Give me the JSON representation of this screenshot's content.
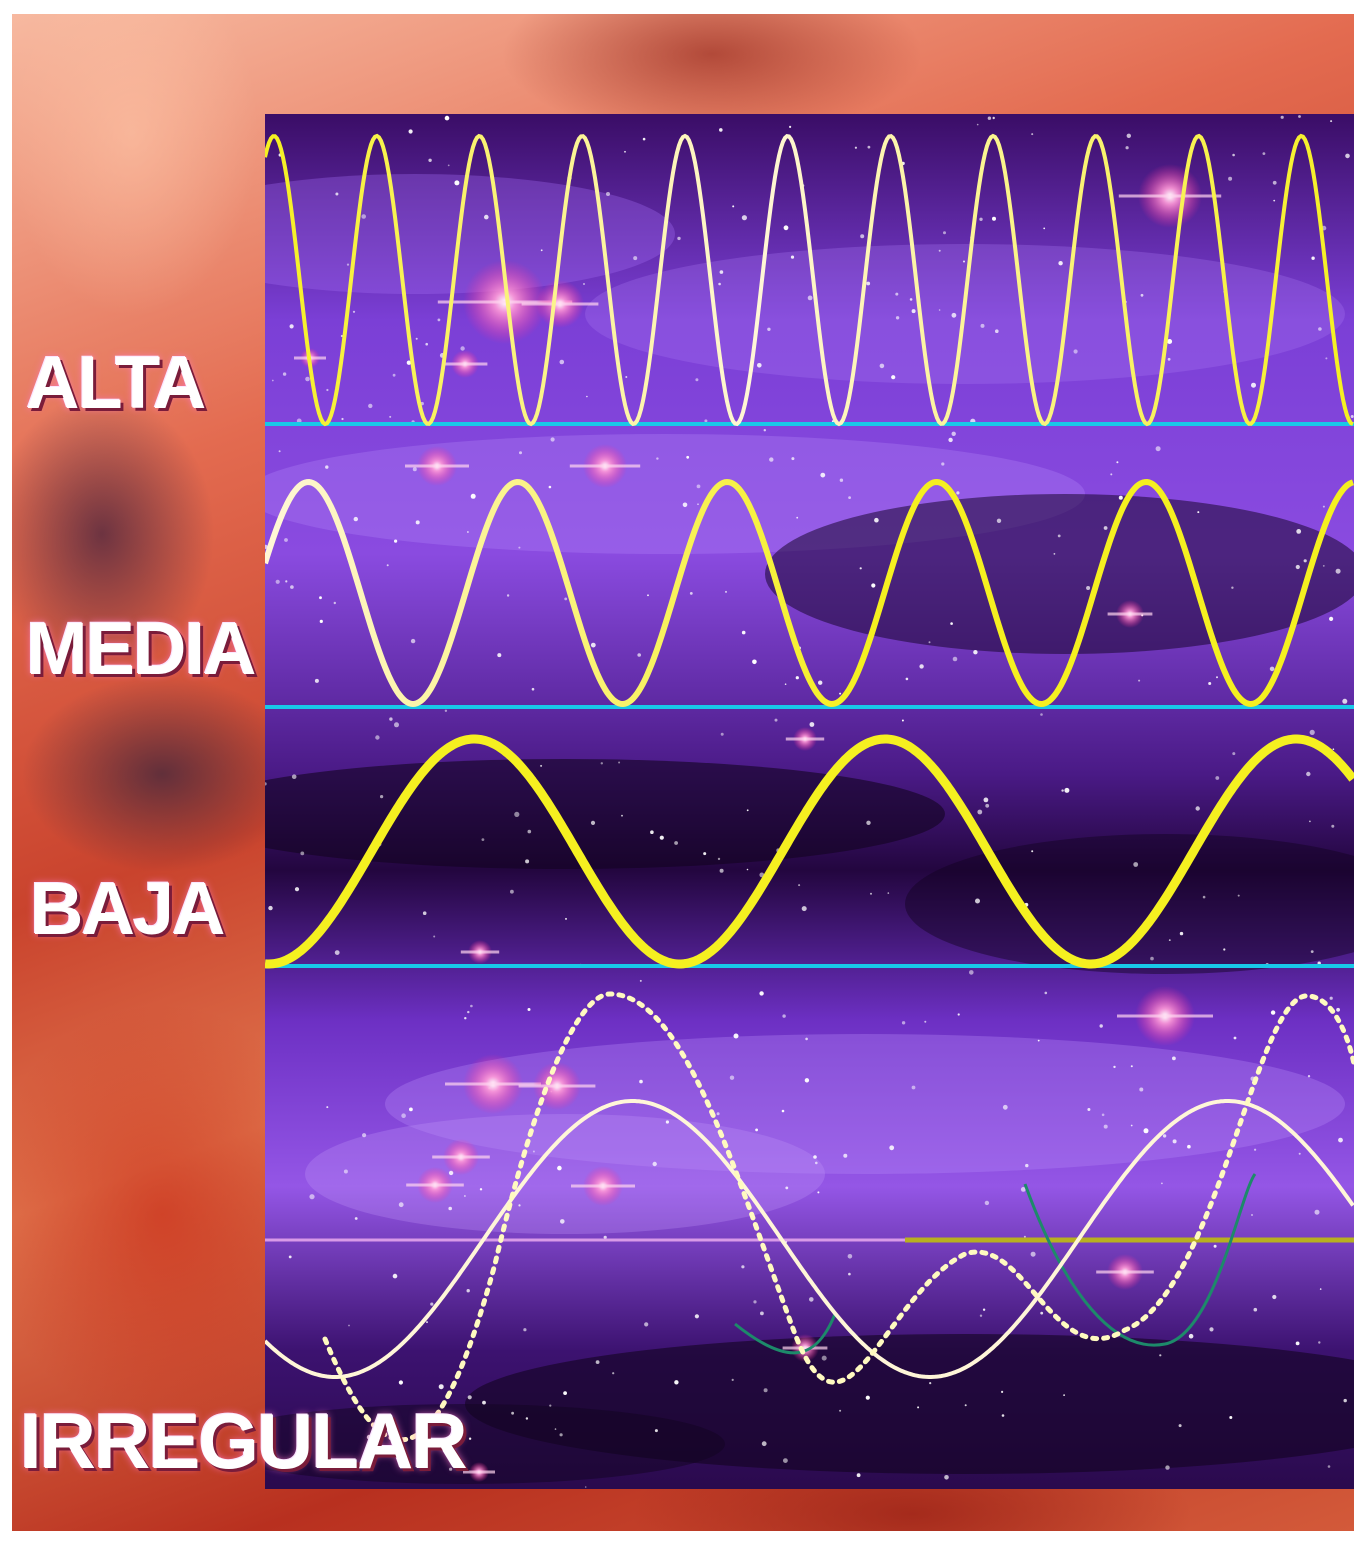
{
  "labels": {
    "alta": "ALTA",
    "media": "MEDIA",
    "baja": "BAJA",
    "irregular": "IRREGULAR"
  },
  "colors": {
    "wave_yellow": "#f5f020",
    "wave_white": "#fff6d8",
    "baseline_cyan": "#18c8e8",
    "panel_purple": "#7b3fd6",
    "panel_dark": "#23063f",
    "background_red": "#c9432d"
  },
  "bands": [
    {
      "name": "alta",
      "cycles": 10.6
    },
    {
      "name": "media",
      "cycles": 5.2
    },
    {
      "name": "baja",
      "cycles": 2.65
    }
  ]
}
